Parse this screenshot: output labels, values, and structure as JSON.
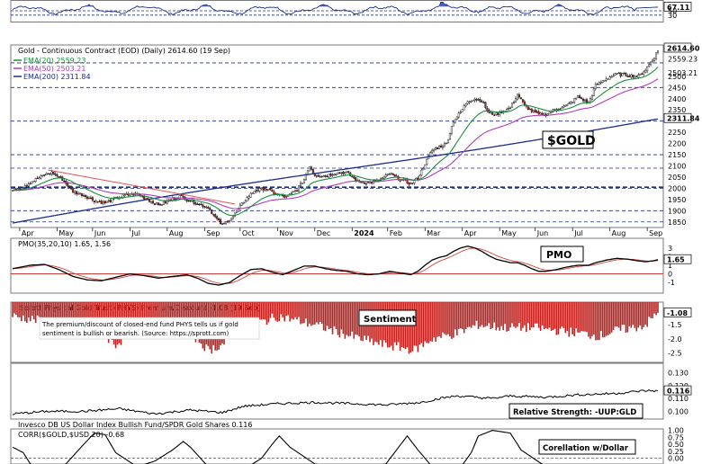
{
  "chart_data": [
    {
      "type": "line",
      "panel": "rsi-strip",
      "series": [
        {
          "name": "RSI",
          "last": 67.11
        }
      ],
      "y_ticks": [
        "50",
        "30"
      ],
      "last_label": "67.11"
    },
    {
      "type": "candlestick",
      "panel": "price",
      "title": "Gold - Continuous Contract (EOD) (Daily) 2614.60 (19 Sep)",
      "legend": [
        "EMA(20) 2559.23",
        "EMA(50) 2503.21",
        "EMA(200) 2311.84"
      ],
      "colors": {
        "ema20": "#1a8f3a",
        "ema50": "#b03cc0",
        "ema200": "#1c2d8c",
        "downtrend": "#e05050"
      },
      "annotation": "$GOLD",
      "x_labels": [
        "Apr",
        "May",
        "Jun",
        "Jul",
        "Aug",
        "Sep",
        "Oct",
        "Nov",
        "Dec",
        "2024",
        "Feb",
        "Mar",
        "Apr",
        "May",
        "Jun",
        "Jul",
        "Aug",
        "Sep"
      ],
      "y_ticks": [
        1850,
        1900,
        1950,
        2000,
        2050,
        2100,
        2150,
        2200,
        2250,
        2300,
        2350,
        2400,
        2450,
        2500,
        2550
      ],
      "ylim": [
        1825,
        2640
      ],
      "last_value": 2614.6,
      "value_labels": [
        "2614.60",
        "2559.23",
        "2503.21",
        "2311.84"
      ],
      "anchor_closes": [
        [
          0,
          1990
        ],
        [
          6,
          2010
        ],
        [
          12,
          2035
        ],
        [
          18,
          2060
        ],
        [
          22,
          2070
        ],
        [
          28,
          2040
        ],
        [
          34,
          1985
        ],
        [
          40,
          1970
        ],
        [
          46,
          1945
        ],
        [
          52,
          1935
        ],
        [
          58,
          1955
        ],
        [
          64,
          1970
        ],
        [
          70,
          1975
        ],
        [
          76,
          1950
        ],
        [
          82,
          1925
        ],
        [
          88,
          1945
        ],
        [
          94,
          1965
        ],
        [
          100,
          1945
        ],
        [
          106,
          1925
        ],
        [
          110,
          1915
        ],
        [
          114,
          1870
        ],
        [
          118,
          1835
        ],
        [
          124,
          1875
        ],
        [
          130,
          1940
        ],
        [
          136,
          1990
        ],
        [
          142,
          2000
        ],
        [
          148,
          1975
        ],
        [
          154,
          1960
        ],
        [
          160,
          1995
        ],
        [
          164,
          2040
        ],
        [
          167,
          2100
        ],
        [
          170,
          2060
        ],
        [
          176,
          2055
        ],
        [
          182,
          2070
        ],
        [
          188,
          2070
        ],
        [
          194,
          2030
        ],
        [
          200,
          2025
        ],
        [
          206,
          2035
        ],
        [
          212,
          2065
        ],
        [
          218,
          2040
        ],
        [
          224,
          2020
        ],
        [
          228,
          2045
        ],
        [
          232,
          2110
        ],
        [
          236,
          2170
        ],
        [
          240,
          2185
        ],
        [
          244,
          2200
        ],
        [
          248,
          2300
        ],
        [
          252,
          2340
        ],
        [
          256,
          2390
        ],
        [
          260,
          2400
        ],
        [
          264,
          2390
        ],
        [
          268,
          2335
        ],
        [
          272,
          2330
        ],
        [
          276,
          2345
        ],
        [
          280,
          2360
        ],
        [
          284,
          2420
        ],
        [
          288,
          2370
        ],
        [
          292,
          2345
        ],
        [
          296,
          2330
        ],
        [
          300,
          2330
        ],
        [
          306,
          2355
        ],
        [
          312,
          2370
        ],
        [
          318,
          2410
        ],
        [
          324,
          2380
        ],
        [
          328,
          2460
        ],
        [
          334,
          2490
        ],
        [
          340,
          2510
        ],
        [
          346,
          2505
        ],
        [
          352,
          2500
        ],
        [
          356,
          2530
        ],
        [
          360,
          2575
        ],
        [
          363,
          2614
        ]
      ]
    },
    {
      "type": "line",
      "panel": "pmo",
      "title": "PMO(35,20,10) 1.65, 1.56",
      "series": [
        {
          "name": "PMO",
          "last": 1.65
        },
        {
          "name": "Signal",
          "last": 1.56
        }
      ],
      "y_ticks": [
        3,
        2,
        1,
        0,
        -1
      ],
      "annotation": "PMO",
      "last_label": "1.65",
      "anchor_values": [
        [
          0,
          0.6
        ],
        [
          10,
          1.0
        ],
        [
          18,
          1.1
        ],
        [
          26,
          0.5
        ],
        [
          34,
          -0.3
        ],
        [
          42,
          -0.7
        ],
        [
          50,
          -0.8
        ],
        [
          58,
          -0.4
        ],
        [
          66,
          0.0
        ],
        [
          74,
          -0.2
        ],
        [
          82,
          -0.5
        ],
        [
          90,
          -0.3
        ],
        [
          98,
          -0.1
        ],
        [
          104,
          -0.5
        ],
        [
          110,
          -1.1
        ],
        [
          116,
          -1.3
        ],
        [
          122,
          -1.0
        ],
        [
          128,
          -0.2
        ],
        [
          134,
          0.5
        ],
        [
          140,
          0.6
        ],
        [
          146,
          0.2
        ],
        [
          152,
          -0.1
        ],
        [
          158,
          0.4
        ],
        [
          164,
          0.9
        ],
        [
          170,
          0.9
        ],
        [
          176,
          0.6
        ],
        [
          182,
          0.4
        ],
        [
          188,
          0.3
        ],
        [
          194,
          0.0
        ],
        [
          200,
          -0.1
        ],
        [
          206,
          0.0
        ],
        [
          212,
          0.3
        ],
        [
          218,
          0.1
        ],
        [
          224,
          -0.1
        ],
        [
          228,
          0.3
        ],
        [
          232,
          1.0
        ],
        [
          236,
          1.6
        ],
        [
          240,
          1.9
        ],
        [
          244,
          2.1
        ],
        [
          248,
          2.6
        ],
        [
          252,
          3.0
        ],
        [
          256,
          3.2
        ],
        [
          260,
          3.0
        ],
        [
          264,
          2.6
        ],
        [
          268,
          2.1
        ],
        [
          272,
          1.7
        ],
        [
          276,
          1.5
        ],
        [
          280,
          1.3
        ],
        [
          284,
          1.3
        ],
        [
          288,
          1.0
        ],
        [
          292,
          0.6
        ],
        [
          296,
          0.3
        ],
        [
          300,
          0.3
        ],
        [
          306,
          0.5
        ],
        [
          312,
          0.8
        ],
        [
          318,
          1.0
        ],
        [
          324,
          1.0
        ],
        [
          328,
          1.3
        ],
        [
          334,
          1.6
        ],
        [
          340,
          1.8
        ],
        [
          346,
          1.7
        ],
        [
          352,
          1.5
        ],
        [
          356,
          1.4
        ],
        [
          360,
          1.5
        ],
        [
          363,
          1.65
        ]
      ]
    },
    {
      "type": "bar",
      "panel": "sentiment",
      "title": "Sprott Physical Gold Trust (PHYS) Premium/Discount -1.08 (19 Sep)",
      "note": "The premium/discount of closed-end fund PHYS tells us if gold sentiment is bullish or bearish. (Source: https://sprott.com)",
      "annotation": "Sentiment",
      "y_ticks": [
        -1.5,
        -2.0,
        -2.5
      ],
      "last_label": "-1.08",
      "color": "#c0221f",
      "anchor_values": [
        [
          0,
          -1.2
        ],
        [
          30,
          -1.5
        ],
        [
          50,
          -1.8
        ],
        [
          58,
          -2.2
        ],
        [
          70,
          -1.6
        ],
        [
          90,
          -1.4
        ],
        [
          104,
          -2.0
        ],
        [
          110,
          -2.4
        ],
        [
          118,
          -2.2
        ],
        [
          130,
          -1.6
        ],
        [
          150,
          -1.2
        ],
        [
          170,
          -1.5
        ],
        [
          190,
          -1.9
        ],
        [
          208,
          -2.2
        ],
        [
          218,
          -2.3
        ],
        [
          226,
          -2.4
        ],
        [
          236,
          -2.0
        ],
        [
          250,
          -1.8
        ],
        [
          262,
          -1.5
        ],
        [
          276,
          -1.6
        ],
        [
          292,
          -1.6
        ],
        [
          306,
          -1.7
        ],
        [
          320,
          -1.8
        ],
        [
          330,
          -1.9
        ],
        [
          340,
          -1.7
        ],
        [
          350,
          -1.6
        ],
        [
          356,
          -1.5
        ],
        [
          363,
          -1.08
        ]
      ]
    },
    {
      "type": "line",
      "panel": "relative-strength",
      "title": "Invesco DB US Dollar Index Bullish Fund/SPDR Gold Shares 0.116",
      "annotation": "Relative Strength: -UUP:GLD",
      "y_ticks": [
        0.13,
        0.12,
        0.11,
        0.1
      ],
      "last_label": "0.116",
      "anchor_values": [
        [
          0,
          0.098
        ],
        [
          20,
          0.1
        ],
        [
          40,
          0.1
        ],
        [
          60,
          0.102
        ],
        [
          80,
          0.098
        ],
        [
          100,
          0.101
        ],
        [
          118,
          0.099
        ],
        [
          130,
          0.104
        ],
        [
          150,
          0.106
        ],
        [
          170,
          0.107
        ],
        [
          190,
          0.106
        ],
        [
          210,
          0.105
        ],
        [
          230,
          0.107
        ],
        [
          240,
          0.11
        ],
        [
          250,
          0.112
        ],
        [
          260,
          0.111
        ],
        [
          270,
          0.11
        ],
        [
          280,
          0.112
        ],
        [
          300,
          0.111
        ],
        [
          320,
          0.113
        ],
        [
          340,
          0.114
        ],
        [
          355,
          0.116
        ],
        [
          363,
          0.116
        ]
      ]
    },
    {
      "type": "line",
      "panel": "correlation",
      "title": "CORR($GOLD,$USD,20) -0.68",
      "annotation": "Corellation w/Dollar",
      "y_ticks": [
        1.0,
        0.75,
        0.5,
        0.25,
        0.0
      ],
      "anchor_values": [
        [
          0,
          0.4
        ],
        [
          6,
          0.2
        ],
        [
          10,
          -0.2
        ],
        [
          20,
          -0.4
        ],
        [
          30,
          -0.2
        ],
        [
          40,
          0.5
        ],
        [
          46,
          0.9
        ],
        [
          52,
          0.85
        ],
        [
          58,
          0.2
        ],
        [
          70,
          -0.3
        ],
        [
          80,
          -0.1
        ],
        [
          90,
          0.3
        ],
        [
          96,
          0.6
        ],
        [
          100,
          0.4
        ],
        [
          110,
          -0.3
        ],
        [
          130,
          -0.4
        ],
        [
          140,
          0.0
        ],
        [
          146,
          0.5
        ],
        [
          150,
          0.8
        ],
        [
          156,
          0.4
        ],
        [
          170,
          -0.2
        ],
        [
          190,
          -0.4
        ],
        [
          210,
          -0.2
        ],
        [
          216,
          0.3
        ],
        [
          222,
          0.8
        ],
        [
          228,
          0.3
        ],
        [
          236,
          -0.3
        ],
        [
          250,
          -0.5
        ],
        [
          258,
          0.2
        ],
        [
          262,
          0.8
        ],
        [
          270,
          1.0
        ],
        [
          280,
          0.9
        ],
        [
          286,
          0.3
        ],
        [
          300,
          -0.3
        ],
        [
          320,
          -0.4
        ],
        [
          340,
          -0.5
        ],
        [
          363,
          -0.68
        ]
      ]
    }
  ],
  "price_labels": {
    "title": "Gold - Continuous Contract (EOD) (Daily) 2614.60 (19 Sep)",
    "ema20": "EMA(20) 2559.23",
    "ema50": "EMA(50) 2503.21",
    "ema200": "EMA(200) 2311.84",
    "tag": "$GOLD"
  },
  "panel_labels": {
    "rsi_last": "67.11",
    "rsi_50": "50",
    "rsi_30": "30",
    "pmo_title": "PMO(35,20,10) 1.65, 1.56",
    "pmo_box": "PMO",
    "pmo_last": "1.65",
    "sent_title": "Sprott Physical Gold Trust (PHYS) Premium/Discount -1.08 (19 Sep)",
    "sent_box": "Sentiment",
    "sent_note_1": "The premium/discount of closed-end fund PHYS tells us if gold",
    "sent_note_2": "sentiment is bullish or bearish. (Source: https://sprott.com)",
    "sent_last": "-1.08",
    "rs_box": "Relative Strength: -UUP:GLD",
    "rs_last": "0.116",
    "rs_title": "Invesco DB US Dollar Index Bullish Fund/SPDR Gold Shares 0.116",
    "corr_title": "CORR($GOLD,$USD,20) -0.68",
    "corr_box": "Corellation w/Dollar"
  }
}
